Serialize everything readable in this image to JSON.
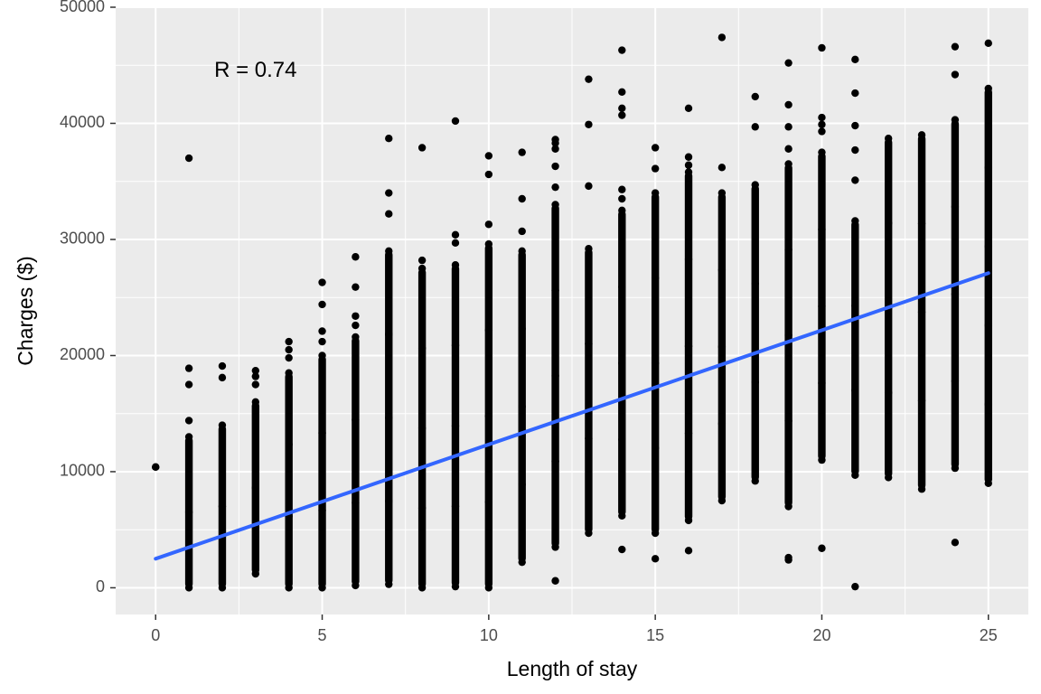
{
  "chart_data": {
    "type": "scatter",
    "xlabel": "Length of stay",
    "ylabel": "Charges ($)",
    "xlim": [
      -1.2,
      26.2
    ],
    "ylim": [
      -2300,
      50000
    ],
    "x_ticks": [
      0,
      5,
      10,
      15,
      20,
      25
    ],
    "y_ticks": [
      0,
      10000,
      20000,
      30000,
      40000,
      50000
    ],
    "x_tick_labels": [
      "0",
      "5",
      "10",
      "15",
      "20",
      "25"
    ],
    "y_tick_labels": [
      "0",
      "10000",
      "20000",
      "30000",
      "40000",
      "50000"
    ],
    "grid": true,
    "legend": "none",
    "annotation": {
      "text": "R = 0.74",
      "x": 3,
      "y": 44500
    },
    "colors": {
      "panel": "#ebebeb",
      "grid": "#ffffff",
      "points": "#000000",
      "fit": "#3366ff"
    },
    "fit_line": {
      "x": [
        0,
        25
      ],
      "y": [
        2500,
        27100
      ]
    },
    "series": [
      {
        "columns": [
          {
            "x": 0,
            "min": 10400,
            "max": 10400,
            "outliers": []
          },
          {
            "x": 1,
            "min": 0,
            "max": 13000,
            "outliers": [
              14400,
              17500,
              18900,
              37000
            ]
          },
          {
            "x": 2,
            "min": 0,
            "max": 14000,
            "outliers": [
              18100,
              19100
            ]
          },
          {
            "x": 3,
            "min": 1200,
            "max": 16000,
            "outliers": [
              17500,
              18200,
              18700
            ]
          },
          {
            "x": 4,
            "min": 0,
            "max": 18500,
            "outliers": [
              19800,
              20500,
              21200
            ]
          },
          {
            "x": 5,
            "min": 0,
            "max": 20000,
            "outliers": [
              21200,
              22100,
              24400,
              26300
            ]
          },
          {
            "x": 6,
            "min": 200,
            "max": 21600,
            "outliers": [
              22600,
              23400,
              25900,
              28500
            ]
          },
          {
            "x": 7,
            "min": 300,
            "max": 29000,
            "outliers": [
              32200,
              34000,
              38700
            ]
          },
          {
            "x": 8,
            "min": 0,
            "max": 27500,
            "outliers": [
              28200,
              37900
            ]
          },
          {
            "x": 9,
            "min": 100,
            "max": 27800,
            "outliers": [
              29700,
              30400,
              40200
            ]
          },
          {
            "x": 10,
            "min": 0,
            "max": 29600,
            "outliers": [
              31300,
              35600,
              37200
            ]
          },
          {
            "x": 11,
            "min": 2200,
            "max": 29000,
            "outliers": [
              30700,
              33500,
              37500
            ]
          },
          {
            "x": 12,
            "min": 3500,
            "max": 33000,
            "outliers": [
              600,
              34500,
              36300,
              37800,
              38300,
              38600
            ]
          },
          {
            "x": 13,
            "min": 4700,
            "max": 29200,
            "outliers": [
              34600,
              39900,
              43800
            ]
          },
          {
            "x": 14,
            "min": 6200,
            "max": 32500,
            "outliers": [
              3300,
              33500,
              34300,
              40700,
              41300,
              42700,
              46300
            ]
          },
          {
            "x": 15,
            "min": 4700,
            "max": 34000,
            "outliers": [
              2500,
              36100,
              37900
            ]
          },
          {
            "x": 16,
            "min": 5800,
            "max": 35800,
            "outliers": [
              3200,
              36400,
              37100,
              41300
            ]
          },
          {
            "x": 17,
            "min": 7500,
            "max": 34000,
            "outliers": [
              36200,
              47400
            ]
          },
          {
            "x": 18,
            "min": 9200,
            "max": 34700,
            "outliers": [
              39700,
              42300
            ]
          },
          {
            "x": 19,
            "min": 7000,
            "max": 36500,
            "outliers": [
              2400,
              2600,
              37800,
              39700,
              41600,
              45200
            ]
          },
          {
            "x": 20,
            "min": 11000,
            "max": 37500,
            "outliers": [
              3400,
              39300,
              39900,
              40500,
              46500
            ]
          },
          {
            "x": 21,
            "min": 9700,
            "max": 31600,
            "outliers": [
              100,
              35100,
              37700,
              39800,
              42600,
              45500
            ]
          },
          {
            "x": 22,
            "min": 9500,
            "max": 38700,
            "outliers": []
          },
          {
            "x": 23,
            "min": 8500,
            "max": 39000,
            "outliers": []
          },
          {
            "x": 24,
            "min": 10300,
            "max": 40300,
            "outliers": [
              3900,
              44200,
              46600
            ]
          },
          {
            "x": 25,
            "min": 9000,
            "max": 43000,
            "outliers": [
              46900
            ]
          }
        ]
      }
    ]
  }
}
